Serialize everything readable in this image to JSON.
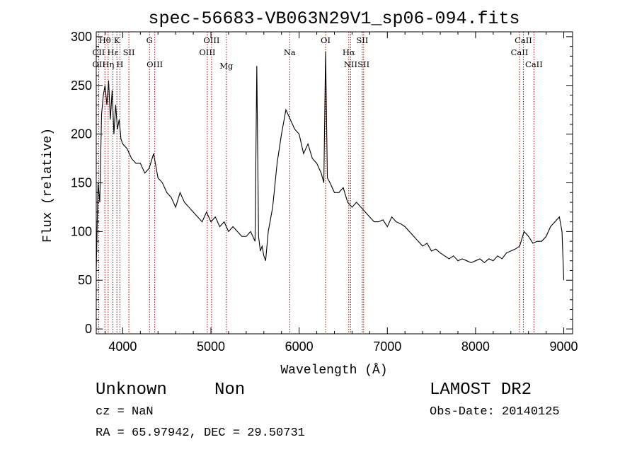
{
  "chart_data": {
    "type": "line",
    "title": "spec-56683-VB063N29V1_sp06-094.fits",
    "xlabel": "Wavelength (Å)",
    "ylabel": "Flux (relative)",
    "xlim": [
      3700,
      9100
    ],
    "ylim": [
      -5,
      305
    ],
    "x_ticks": [
      4000,
      5000,
      6000,
      7000,
      8000,
      9000
    ],
    "y_ticks": [
      0,
      50,
      100,
      150,
      200,
      250,
      300
    ],
    "grid": false,
    "color": "#000000",
    "line_marker_color": "#b00000",
    "series": [
      {
        "x": [
          3700,
          3720,
          3740,
          3760,
          3780,
          3800,
          3820,
          3840,
          3860,
          3880,
          3900,
          3920,
          3940,
          3960,
          3980,
          4000,
          4050,
          4100,
          4150,
          4200,
          4250,
          4300,
          4350,
          4400,
          4450,
          4500,
          4550,
          4600,
          4650,
          4700,
          4750,
          4800,
          4850,
          4900,
          4950,
          5000,
          5050,
          5100,
          5150,
          5200,
          5250,
          5300,
          5350,
          5400,
          5450,
          5500,
          5520,
          5540,
          5560,
          5580,
          5600,
          5620,
          5650,
          5700,
          5750,
          5800,
          5850,
          5900,
          5950,
          6000,
          6050,
          6100,
          6150,
          6200,
          6250,
          6280,
          6300,
          6320,
          6350,
          6400,
          6450,
          6500,
          6550,
          6600,
          6650,
          6700,
          6750,
          6800,
          6850,
          6900,
          6950,
          7000,
          7050,
          7100,
          7150,
          7200,
          7250,
          7300,
          7350,
          7400,
          7450,
          7500,
          7550,
          7600,
          7650,
          7700,
          7750,
          7800,
          7850,
          7900,
          7950,
          8000,
          8050,
          8100,
          8150,
          8200,
          8250,
          8300,
          8350,
          8400,
          8450,
          8500,
          8550,
          8600,
          8650,
          8700,
          8750,
          8800,
          8850,
          8900,
          8950,
          8980,
          9000
        ],
        "y": [
          60,
          150,
          130,
          220,
          240,
          250,
          230,
          255,
          215,
          245,
          200,
          230,
          205,
          215,
          195,
          190,
          185,
          175,
          170,
          170,
          160,
          165,
          180,
          155,
          150,
          140,
          135,
          125,
          140,
          130,
          125,
          120,
          115,
          110,
          120,
          110,
          115,
          105,
          110,
          100,
          105,
          100,
          95,
          95,
          100,
          90,
          270,
          95,
          80,
          85,
          75,
          70,
          100,
          125,
          170,
          200,
          225,
          215,
          205,
          200,
          180,
          190,
          175,
          170,
          160,
          150,
          285,
          155,
          150,
          140,
          140,
          145,
          130,
          125,
          130,
          125,
          120,
          115,
          110,
          110,
          112,
          105,
          115,
          110,
          108,
          105,
          100,
          95,
          90,
          85,
          88,
          80,
          82,
          78,
          75,
          72,
          75,
          70,
          72,
          70,
          68,
          70,
          72,
          68,
          72,
          70,
          75,
          72,
          78,
          80,
          82,
          85,
          100,
          95,
          88,
          90,
          90,
          95,
          105,
          110,
          115,
          100,
          50
        ]
      }
    ],
    "spectral_lines": [
      {
        "name": "CII",
        "x": 3727,
        "row": 2
      },
      {
        "name": "OII",
        "x": 3729,
        "row": 3
      },
      {
        "name": "Hθ",
        "x": 3798,
        "row": 1
      },
      {
        "name": "Hη",
        "x": 3835,
        "row": 3
      },
      {
        "name": "Hε",
        "x": 3889,
        "row": 2
      },
      {
        "name": "K",
        "x": 3934,
        "row": 1
      },
      {
        "name": "H",
        "x": 3968,
        "row": 3
      },
      {
        "name": "SII",
        "x": 4070,
        "row": 2
      },
      {
        "name": "G",
        "x": 4304,
        "row": 1
      },
      {
        "name": "OIII",
        "x": 4363,
        "row": 3
      },
      {
        "name": "OIII",
        "x": 4959,
        "row": 2
      },
      {
        "name": "OIII",
        "x": 5007,
        "row": 1
      },
      {
        "name": "Mg",
        "x": 5175,
        "row": 4
      },
      {
        "name": "Na",
        "x": 5893,
        "row": 2
      },
      {
        "name": "OI",
        "x": 6300,
        "row": 1
      },
      {
        "name": "Hα",
        "x": 6563,
        "row": 2
      },
      {
        "name": "NII",
        "x": 6584,
        "row": 3
      },
      {
        "name": "SII",
        "x": 6716,
        "row": 1
      },
      {
        "name": "SII",
        "x": 6731,
        "row": 3
      },
      {
        "name": "CaII",
        "x": 8498,
        "row": 2
      },
      {
        "name": "CaII",
        "x": 8542,
        "row": 1
      },
      {
        "name": "CaII",
        "x": 8662,
        "row": 3
      }
    ]
  },
  "footer": {
    "object_class": "Unknown",
    "object_subclass": "Non",
    "cz": "cz = NaN",
    "coords": "RA =  65.97942, DEC =  29.50731",
    "survey": "LAMOST DR2",
    "obs_date": "Obs-Date: 20140125"
  }
}
